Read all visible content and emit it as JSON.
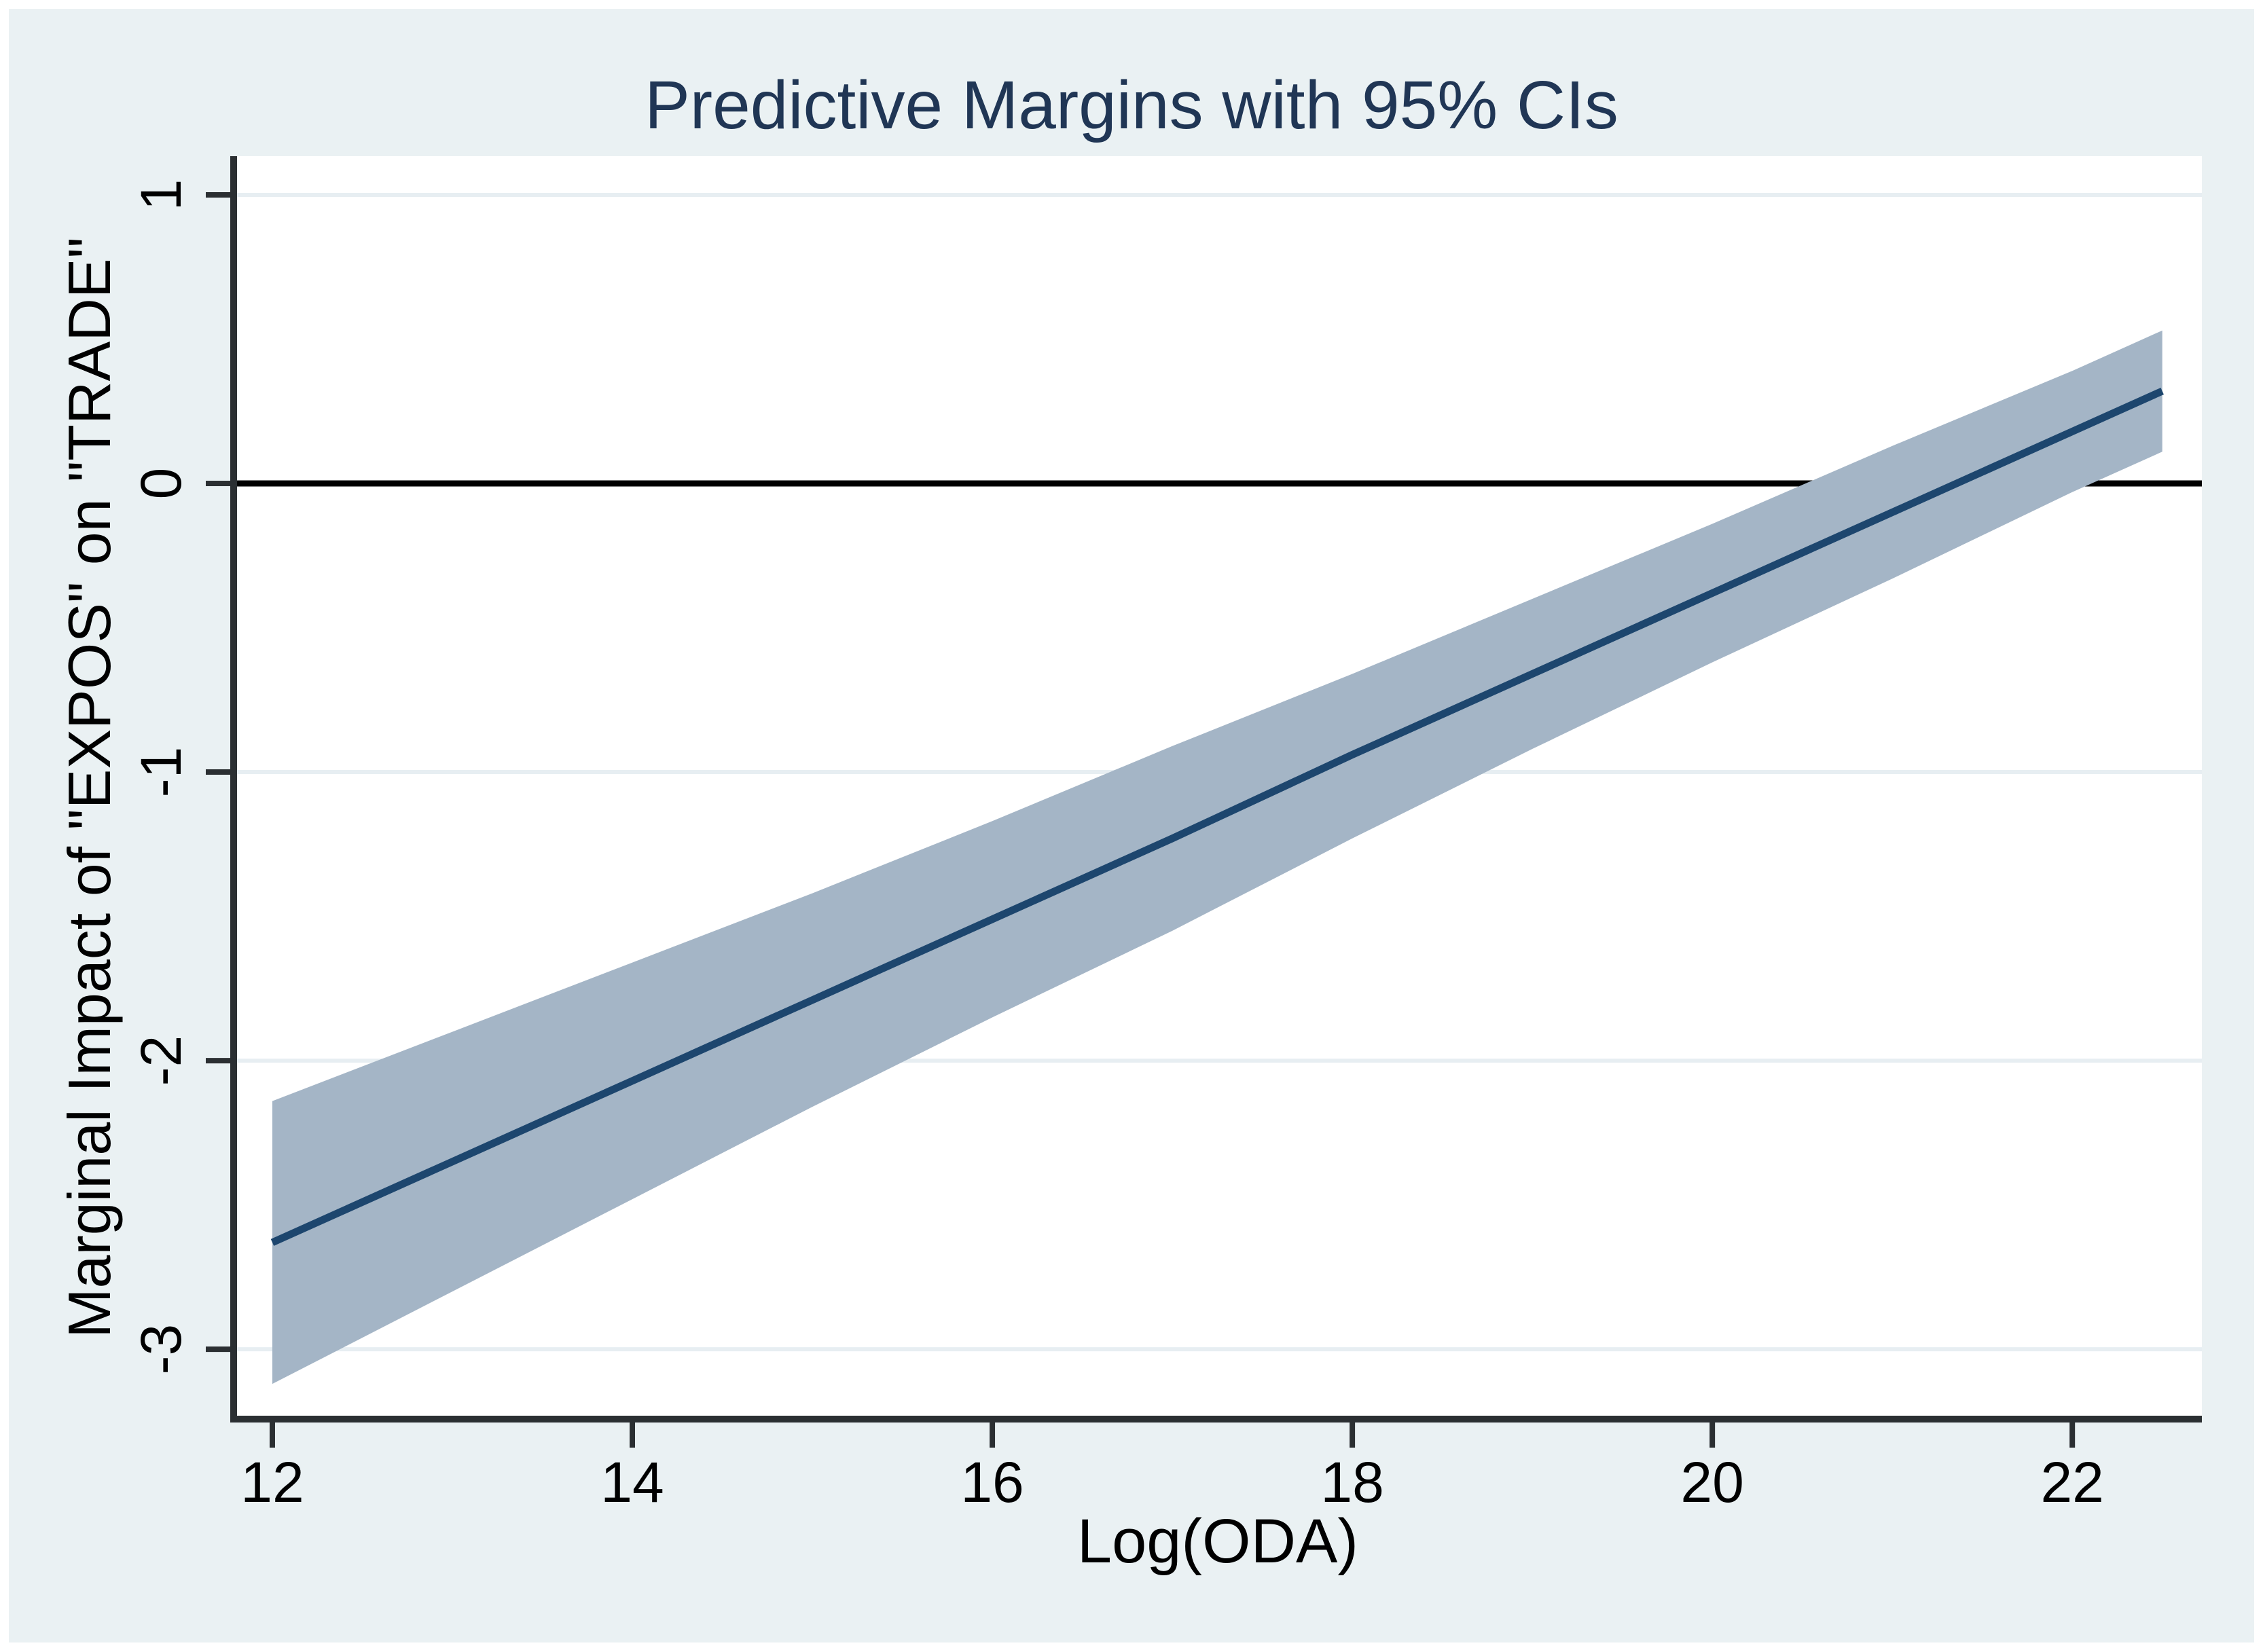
{
  "chart_data": {
    "type": "line",
    "subtype": "predictive-margins-with-ci-band",
    "title": "Predictive Margins with 95% CIs",
    "xlabel": "Log(ODA)",
    "ylabel": "Marginal Impact of \"EXPOS\" on \"TRADE\"",
    "x": [
      12,
      13,
      14,
      15,
      16,
      17,
      18,
      19,
      20,
      21,
      22,
      22.5
    ],
    "series": [
      {
        "name": "Marginal effect of EXPOS on TRADE",
        "values": [
          -2.63,
          -2.35,
          -2.07,
          -1.79,
          -1.51,
          -1.23,
          -0.94,
          -0.66,
          -0.38,
          -0.1,
          0.18,
          0.32
        ]
      }
    ],
    "ci_upper": [
      -2.14,
      -1.9,
      -1.66,
      -1.42,
      -1.17,
      -0.91,
      -0.66,
      -0.4,
      -0.14,
      0.13,
      0.39,
      0.53
    ],
    "ci_lower": [
      -3.12,
      -2.8,
      -2.48,
      -2.16,
      -1.85,
      -1.55,
      -1.23,
      -0.92,
      -0.62,
      -0.33,
      -0.03,
      0.11
    ],
    "ci_level": "95%",
    "xticks": [
      12,
      14,
      16,
      18,
      20,
      22
    ],
    "yticks": [
      1,
      0,
      -1,
      -2,
      -3
    ],
    "xtick_labels": [
      "12",
      "14",
      "16",
      "18",
      "20",
      "22"
    ],
    "ytick_labels": [
      "1",
      "0",
      "-1",
      "-2",
      "-3"
    ],
    "xlim": [
      11.785,
      22.72
    ],
    "ylim": [
      -3.242,
      1.134
    ],
    "zero_reference_line": 0,
    "grid": "horizontal-faint",
    "legend_position": "none",
    "colors": {
      "background": "#ffffff",
      "graph_region": "#eaf1f3",
      "plot_region": "#ffffff",
      "grid": "#e7eef2",
      "ci_band": "#a4b5c6",
      "line": "#1d466e",
      "zero_line": "#000000",
      "axis": "#2b2f32",
      "tick_label": "#000000",
      "title": "#203655",
      "axis_title": "#000000"
    }
  }
}
